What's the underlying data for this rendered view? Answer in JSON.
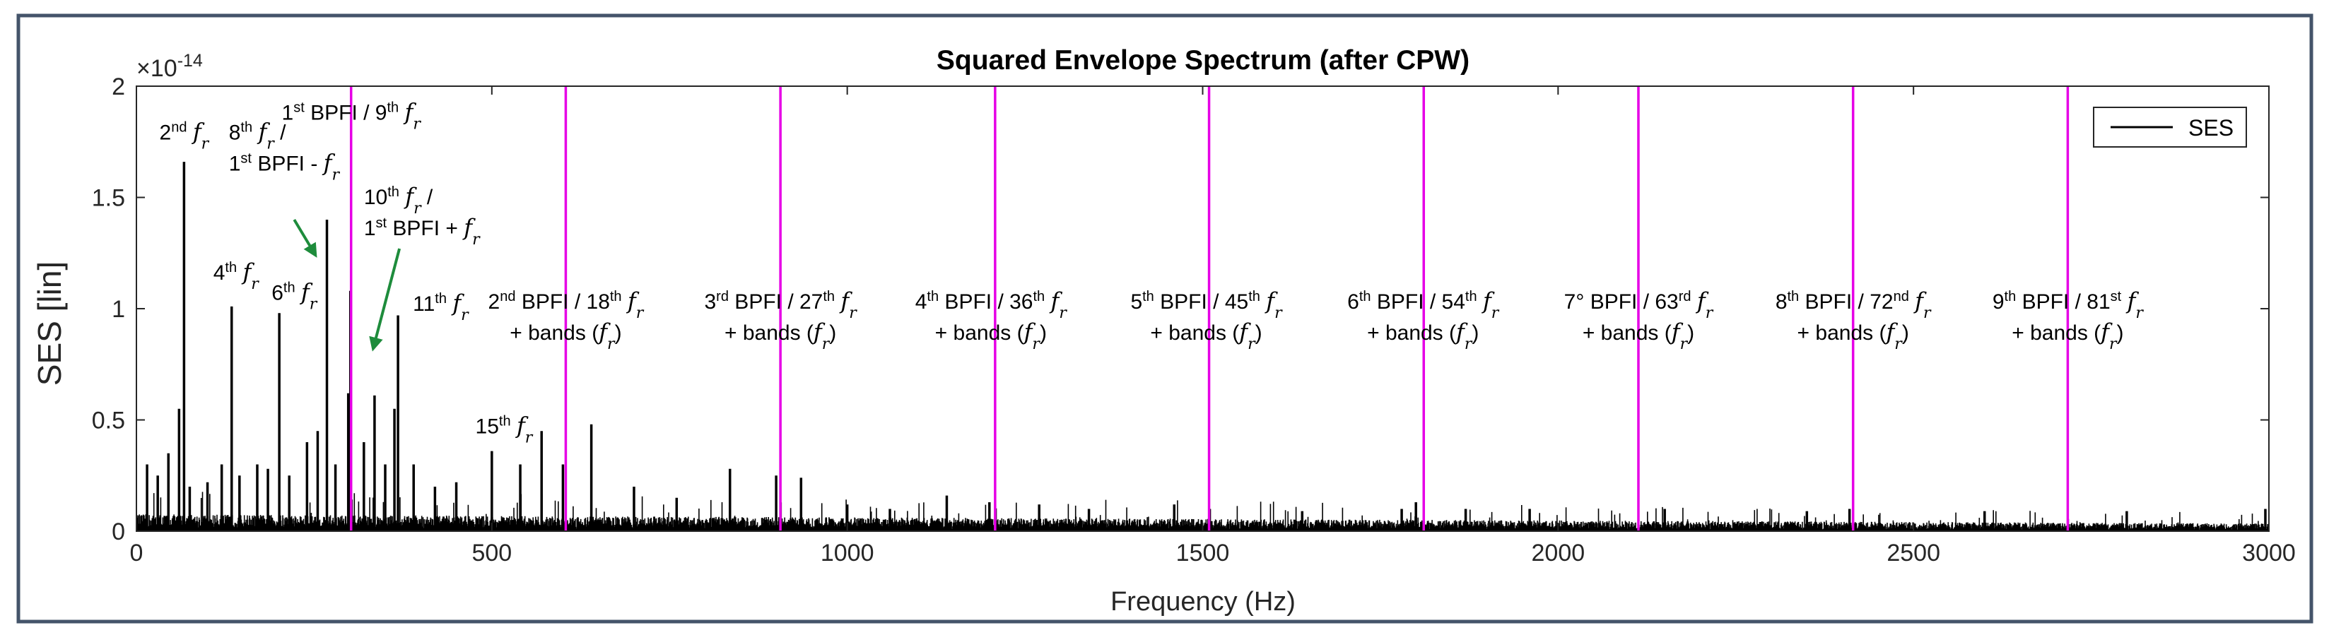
{
  "chart_data": {
    "type": "line",
    "title": "Squared Envelope Spectrum (after CPW)",
    "xlabel": "Frequency (Hz)",
    "ylabel": "SES [lin]",
    "y_scale_prefix": "×10",
    "y_scale_exponent": "-14",
    "xlim": [
      0,
      3000
    ],
    "ylim": [
      0,
      2
    ],
    "x_ticks": [
      "0",
      "500",
      "1000",
      "1500",
      "2000",
      "2500",
      "3000"
    ],
    "y_ticks": [
      "0",
      "0.5",
      "1",
      "1.5",
      "2"
    ],
    "grid": false,
    "legend_position": "top-right",
    "series": [
      {
        "name": "SES",
        "color": "#000000",
        "noise_floor": 0.04,
        "peaks": [
          {
            "x": 15,
            "y": 0.3
          },
          {
            "x": 30,
            "y": 0.25
          },
          {
            "x": 45,
            "y": 0.35
          },
          {
            "x": 60,
            "y": 0.55
          },
          {
            "x": 67,
            "y": 1.66
          },
          {
            "x": 75,
            "y": 0.2
          },
          {
            "x": 100,
            "y": 0.22
          },
          {
            "x": 120,
            "y": 0.3
          },
          {
            "x": 134,
            "y": 1.01
          },
          {
            "x": 145,
            "y": 0.25
          },
          {
            "x": 170,
            "y": 0.3
          },
          {
            "x": 185,
            "y": 0.28
          },
          {
            "x": 201,
            "y": 0.98
          },
          {
            "x": 215,
            "y": 0.25
          },
          {
            "x": 240,
            "y": 0.4
          },
          {
            "x": 255,
            "y": 0.45
          },
          {
            "x": 268,
            "y": 1.4
          },
          {
            "x": 280,
            "y": 0.3
          },
          {
            "x": 298,
            "y": 0.62
          },
          {
            "x": 301,
            "y": 1.08
          },
          {
            "x": 320,
            "y": 0.4
          },
          {
            "x": 335,
            "y": 0.61
          },
          {
            "x": 350,
            "y": 0.3
          },
          {
            "x": 363,
            "y": 0.55
          },
          {
            "x": 368,
            "y": 0.97
          },
          {
            "x": 390,
            "y": 0.3
          },
          {
            "x": 420,
            "y": 0.2
          },
          {
            "x": 450,
            "y": 0.22
          },
          {
            "x": 500,
            "y": 0.36
          },
          {
            "x": 540,
            "y": 0.3
          },
          {
            "x": 570,
            "y": 0.45
          },
          {
            "x": 600,
            "y": 0.3
          },
          {
            "x": 640,
            "y": 0.48
          },
          {
            "x": 700,
            "y": 0.2
          },
          {
            "x": 760,
            "y": 0.15
          },
          {
            "x": 835,
            "y": 0.28
          },
          {
            "x": 900,
            "y": 0.25
          },
          {
            "x": 935,
            "y": 0.24
          },
          {
            "x": 1000,
            "y": 0.12
          },
          {
            "x": 1060,
            "y": 0.1
          },
          {
            "x": 1140,
            "y": 0.16
          },
          {
            "x": 1200,
            "y": 0.13
          },
          {
            "x": 1270,
            "y": 0.12
          },
          {
            "x": 1340,
            "y": 0.1
          },
          {
            "x": 1460,
            "y": 0.12
          },
          {
            "x": 1510,
            "y": 0.1
          },
          {
            "x": 1640,
            "y": 0.09
          },
          {
            "x": 1780,
            "y": 0.1
          },
          {
            "x": 1800,
            "y": 0.13
          },
          {
            "x": 1870,
            "y": 0.1
          },
          {
            "x": 1960,
            "y": 0.1
          },
          {
            "x": 2150,
            "y": 0.1
          },
          {
            "x": 2350,
            "y": 0.09
          },
          {
            "x": 2410,
            "y": 0.1
          },
          {
            "x": 2600,
            "y": 0.09
          },
          {
            "x": 2800,
            "y": 0.09
          },
          {
            "x": 2995,
            "y": 0.1
          }
        ]
      }
    ],
    "bpfi_lines": {
      "color": "#E600E6",
      "x": [
        302,
        604,
        906,
        1208,
        1509,
        1811,
        2113,
        2415,
        2717
      ]
    },
    "annotations": [
      {
        "id": "a2nd",
        "x": 67,
        "y": 1.76,
        "anchor": "middle",
        "lines": [
          [
            {
              "t": "2"
            },
            {
              "t": "nd",
              "sup": true
            },
            {
              "t": " "
            },
            {
              "t": "f",
              "math": true
            },
            {
              "t": "r",
              "sub": true,
              "math": true
            }
          ]
        ]
      },
      {
        "id": "a1bpfi",
        "x": 302,
        "y": 1.85,
        "anchor": "middle",
        "lines": [
          [
            {
              "t": "1"
            },
            {
              "t": "st",
              "sup": true
            },
            {
              "t": " BPFI / 9"
            },
            {
              "t": "th",
              "sup": true
            },
            {
              "t": " "
            },
            {
              "t": "f",
              "math": true
            },
            {
              "t": "r",
              "sub": true,
              "math": true
            }
          ]
        ]
      },
      {
        "id": "a8th",
        "x": 130,
        "y": 1.62,
        "anchor": "start",
        "lines": [
          [
            {
              "t": "8"
            },
            {
              "t": "th",
              "sup": true
            },
            {
              "t": " "
            },
            {
              "t": "f",
              "math": true
            },
            {
              "t": "r",
              "sub": true,
              "math": true
            },
            {
              "t": " /"
            }
          ],
          [
            {
              "t": "1"
            },
            {
              "t": "st",
              "sup": true
            },
            {
              "t": " BPFI - "
            },
            {
              "t": "f",
              "math": true
            },
            {
              "t": "r",
              "sub": true,
              "math": true
            }
          ]
        ]
      },
      {
        "id": "a10th",
        "x": 320,
        "y": 1.33,
        "anchor": "start",
        "lines": [
          [
            {
              "t": "10"
            },
            {
              "t": "th",
              "sup": true
            },
            {
              "t": " "
            },
            {
              "t": "f",
              "math": true
            },
            {
              "t": "r",
              "sub": true,
              "math": true
            },
            {
              "t": " /"
            }
          ],
          [
            {
              "t": "1"
            },
            {
              "t": "st",
              "sup": true
            },
            {
              "t": " BPFI + "
            },
            {
              "t": "f",
              "math": true
            },
            {
              "t": "r",
              "sub": true,
              "math": true
            }
          ]
        ]
      },
      {
        "id": "a4th",
        "x": 140,
        "y": 1.13,
        "anchor": "middle",
        "lines": [
          [
            {
              "t": "4"
            },
            {
              "t": "th",
              "sup": true
            },
            {
              "t": " "
            },
            {
              "t": "f",
              "math": true
            },
            {
              "t": "r",
              "sub": true,
              "math": true
            }
          ]
        ]
      },
      {
        "id": "a6th",
        "x": 222,
        "y": 1.04,
        "anchor": "middle",
        "lines": [
          [
            {
              "t": "6"
            },
            {
              "t": "th",
              "sup": true
            },
            {
              "t": " "
            },
            {
              "t": "f",
              "math": true
            },
            {
              "t": "r",
              "sub": true,
              "math": true
            }
          ]
        ]
      },
      {
        "id": "a11th",
        "x": 428,
        "y": 0.99,
        "anchor": "middle",
        "lines": [
          [
            {
              "t": "11"
            },
            {
              "t": "th",
              "sup": true
            },
            {
              "t": " "
            },
            {
              "t": "f",
              "math": true
            },
            {
              "t": "r",
              "sub": true,
              "math": true
            }
          ]
        ]
      },
      {
        "id": "a15th",
        "x": 517,
        "y": 0.44,
        "anchor": "middle",
        "lines": [
          [
            {
              "t": "15"
            },
            {
              "t": "th",
              "sup": true
            },
            {
              "t": " "
            },
            {
              "t": "f",
              "math": true
            },
            {
              "t": "r",
              "sub": true,
              "math": true
            }
          ]
        ]
      },
      {
        "id": "b2",
        "x": 604,
        "y": 0.86,
        "anchor": "middle",
        "lines": [
          [
            {
              "t": "2"
            },
            {
              "t": "nd",
              "sup": true
            },
            {
              "t": " BPFI / 18"
            },
            {
              "t": "th",
              "sup": true
            },
            {
              "t": " "
            },
            {
              "t": "f",
              "math": true
            },
            {
              "t": "r",
              "sub": true,
              "math": true
            }
          ],
          [
            {
              "t": "+ bands ("
            },
            {
              "t": "f",
              "math": true
            },
            {
              "t": "r",
              "sub": true,
              "math": true
            },
            {
              "t": ")"
            }
          ]
        ]
      },
      {
        "id": "b3",
        "x": 906,
        "y": 0.86,
        "anchor": "middle",
        "lines": [
          [
            {
              "t": "3"
            },
            {
              "t": "rd",
              "sup": true
            },
            {
              "t": " BPFI / 27"
            },
            {
              "t": "th",
              "sup": true
            },
            {
              "t": " "
            },
            {
              "t": "f",
              "math": true
            },
            {
              "t": "r",
              "sub": true,
              "math": true
            }
          ],
          [
            {
              "t": "+ bands ("
            },
            {
              "t": "f",
              "math": true
            },
            {
              "t": "r",
              "sub": true,
              "math": true
            },
            {
              "t": ")"
            }
          ]
        ]
      },
      {
        "id": "b4",
        "x": 1202,
        "y": 0.86,
        "anchor": "middle",
        "lines": [
          [
            {
              "t": "4"
            },
            {
              "t": "th",
              "sup": true
            },
            {
              "t": " BPFI / 36"
            },
            {
              "t": "th",
              "sup": true
            },
            {
              "t": " "
            },
            {
              "t": "f",
              "math": true
            },
            {
              "t": "r",
              "sub": true,
              "math": true
            }
          ],
          [
            {
              "t": "+ bands ("
            },
            {
              "t": "f",
              "math": true
            },
            {
              "t": "r",
              "sub": true,
              "math": true
            },
            {
              "t": ")"
            }
          ]
        ]
      },
      {
        "id": "b5",
        "x": 1505,
        "y": 0.86,
        "anchor": "middle",
        "lines": [
          [
            {
              "t": "5"
            },
            {
              "t": "th",
              "sup": true
            },
            {
              "t": " BPFI / 45"
            },
            {
              "t": "th",
              "sup": true
            },
            {
              "t": " "
            },
            {
              "t": "f",
              "math": true
            },
            {
              "t": "r",
              "sub": true,
              "math": true
            }
          ],
          [
            {
              "t": "+ bands ("
            },
            {
              "t": "f",
              "math": true
            },
            {
              "t": "r",
              "sub": true,
              "math": true
            },
            {
              "t": ")"
            }
          ]
        ]
      },
      {
        "id": "b6",
        "x": 1810,
        "y": 0.86,
        "anchor": "middle",
        "lines": [
          [
            {
              "t": "6"
            },
            {
              "t": "th",
              "sup": true
            },
            {
              "t": " BPFI / 54"
            },
            {
              "t": "th",
              "sup": true
            },
            {
              "t": " "
            },
            {
              "t": "f",
              "math": true
            },
            {
              "t": "r",
              "sub": true,
              "math": true
            }
          ],
          [
            {
              "t": "+ bands ("
            },
            {
              "t": "f",
              "math": true
            },
            {
              "t": "r",
              "sub": true,
              "math": true
            },
            {
              "t": ")"
            }
          ]
        ]
      },
      {
        "id": "b7",
        "x": 2113,
        "y": 0.86,
        "anchor": "middle",
        "lines": [
          [
            {
              "t": "7° BPFI / 63"
            },
            {
              "t": "rd",
              "sup": true
            },
            {
              "t": " "
            },
            {
              "t": "f",
              "math": true
            },
            {
              "t": "r",
              "sub": true,
              "math": true
            }
          ],
          [
            {
              "t": "+ bands ("
            },
            {
              "t": "f",
              "math": true
            },
            {
              "t": "r",
              "sub": true,
              "math": true
            },
            {
              "t": ")"
            }
          ]
        ]
      },
      {
        "id": "b8",
        "x": 2415,
        "y": 0.86,
        "anchor": "middle",
        "lines": [
          [
            {
              "t": "8"
            },
            {
              "t": "th",
              "sup": true
            },
            {
              "t": " BPFI / 72"
            },
            {
              "t": "nd",
              "sup": true
            },
            {
              "t": " "
            },
            {
              "t": "f",
              "math": true
            },
            {
              "t": "r",
              "sub": true,
              "math": true
            }
          ],
          [
            {
              "t": "+ bands ("
            },
            {
              "t": "f",
              "math": true
            },
            {
              "t": "r",
              "sub": true,
              "math": true
            },
            {
              "t": ")"
            }
          ]
        ]
      },
      {
        "id": "b9",
        "x": 2717,
        "y": 0.86,
        "anchor": "middle",
        "lines": [
          [
            {
              "t": "9"
            },
            {
              "t": "th",
              "sup": true
            },
            {
              "t": " BPFI / 81"
            },
            {
              "t": "st",
              "sup": true
            },
            {
              "t": " "
            },
            {
              "t": "f",
              "math": true
            },
            {
              "t": "r",
              "sub": true,
              "math": true
            }
          ],
          [
            {
              "t": "+ bands ("
            },
            {
              "t": "f",
              "math": true
            },
            {
              "t": "r",
              "sub": true,
              "math": true
            },
            {
              "t": ")"
            }
          ]
        ]
      }
    ],
    "arrows": [
      {
        "color": "#1E8C3C",
        "from": [
          222,
          1.4
        ],
        "to": [
          252,
          1.24
        ]
      },
      {
        "color": "#1E8C3C",
        "from": [
          370,
          1.27
        ],
        "to": [
          333,
          0.82
        ]
      }
    ]
  }
}
